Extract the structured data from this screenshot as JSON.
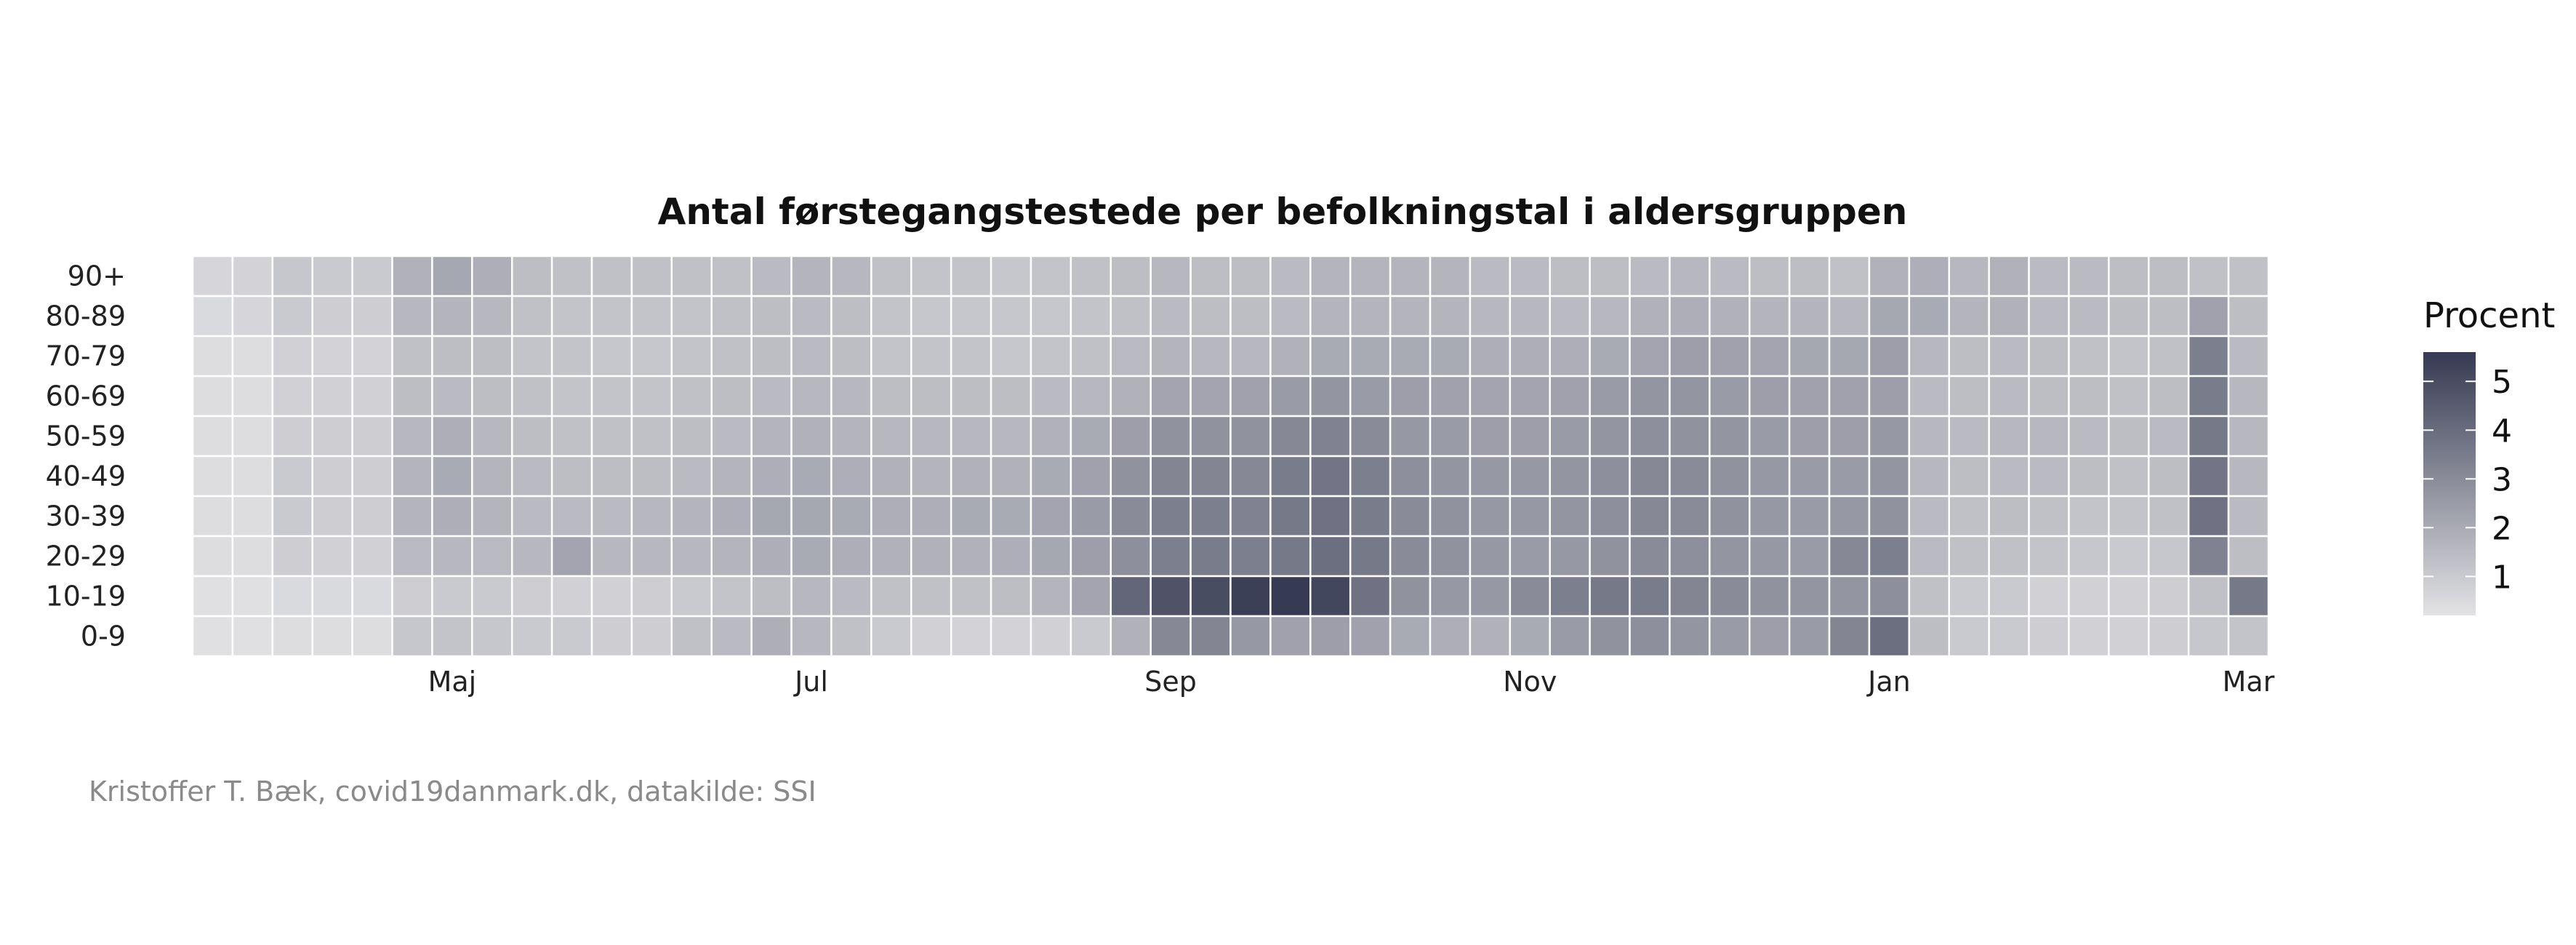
{
  "chart_data": {
    "type": "heatmap",
    "title": "Antal førstegangstestede per befolkningstal i aldersgruppen",
    "caption": "Kristoffer T. Bæk, covid19danmark.dk, datakilde: SSI",
    "rows": [
      "90+",
      "80-89",
      "70-79",
      "60-69",
      "50-59",
      "40-49",
      "30-39",
      "20-29",
      "10-19",
      "0-9"
    ],
    "x_tick_labels": [
      "Maj",
      "Jul",
      "Sep",
      "Nov",
      "Jan",
      "Mar"
    ],
    "x_tick_weeks": [
      6,
      15,
      24,
      33,
      42,
      51
    ],
    "n_weeks": 52,
    "legend": {
      "title": "Procent",
      "ticks": [
        1,
        2,
        3,
        4,
        5
      ],
      "min": 0.2,
      "max": 5.6,
      "low_color": "#e3e3e5",
      "high_color": "#363a52"
    },
    "values": [
      [
        0.6,
        0.7,
        1.1,
        1.0,
        1.0,
        1.8,
        2.1,
        1.9,
        1.4,
        1.3,
        1.3,
        1.3,
        1.3,
        1.3,
        1.5,
        1.7,
        1.6,
        1.3,
        1.2,
        1.2,
        1.1,
        1.2,
        1.3,
        1.4,
        1.6,
        1.4,
        1.4,
        1.5,
        1.7,
        1.7,
        1.7,
        1.7,
        1.5,
        1.5,
        1.4,
        1.4,
        1.5,
        1.6,
        1.5,
        1.4,
        1.4,
        1.3,
        1.8,
        1.9,
        1.6,
        1.8,
        1.5,
        1.5,
        1.4,
        1.4,
        1.3,
        1.3
      ],
      [
        0.5,
        0.6,
        1.0,
        0.9,
        0.9,
        1.6,
        1.7,
        1.6,
        1.3,
        1.2,
        1.2,
        1.2,
        1.2,
        1.3,
        1.4,
        1.5,
        1.4,
        1.2,
        1.1,
        1.1,
        1.1,
        1.1,
        1.2,
        1.3,
        1.5,
        1.4,
        1.4,
        1.5,
        1.7,
        1.7,
        1.7,
        1.7,
        1.6,
        1.6,
        1.5,
        1.6,
        1.8,
        1.9,
        1.8,
        1.7,
        1.7,
        1.6,
        2.1,
        2.0,
        1.7,
        1.8,
        1.5,
        1.5,
        1.4,
        1.4,
        2.3,
        1.4
      ],
      [
        0.4,
        0.4,
        0.8,
        0.7,
        0.7,
        1.3,
        1.4,
        1.4,
        1.2,
        1.2,
        1.1,
        1.1,
        1.2,
        1.3,
        1.4,
        1.5,
        1.4,
        1.2,
        1.2,
        1.2,
        1.1,
        1.2,
        1.3,
        1.5,
        1.7,
        1.6,
        1.6,
        1.8,
        2.0,
        2.0,
        2.0,
        2.0,
        1.9,
        1.9,
        1.9,
        2.0,
        2.2,
        2.4,
        2.3,
        2.2,
        2.1,
        2.1,
        2.4,
        1.6,
        1.4,
        1.5,
        1.4,
        1.3,
        1.2,
        1.3,
        3.4,
        1.5
      ],
      [
        0.4,
        0.4,
        0.8,
        0.8,
        0.8,
        1.4,
        1.5,
        1.4,
        1.3,
        1.2,
        1.2,
        1.2,
        1.3,
        1.4,
        1.5,
        1.6,
        1.6,
        1.4,
        1.4,
        1.4,
        1.4,
        1.5,
        1.6,
        1.8,
        2.2,
        2.2,
        2.3,
        2.5,
        2.7,
        2.5,
        2.4,
        2.3,
        2.2,
        2.2,
        2.3,
        2.5,
        2.7,
        2.7,
        2.5,
        2.4,
        2.3,
        2.3,
        2.4,
        1.5,
        1.4,
        1.5,
        1.4,
        1.4,
        1.3,
        1.4,
        3.5,
        1.6
      ],
      [
        0.4,
        0.4,
        0.9,
        0.9,
        0.9,
        1.6,
        1.9,
        1.6,
        1.4,
        1.3,
        1.3,
        1.3,
        1.4,
        1.5,
        1.7,
        1.8,
        1.7,
        1.6,
        1.6,
        1.6,
        1.6,
        1.8,
        2.0,
        2.4,
        2.8,
        2.8,
        2.8,
        3.1,
        3.3,
        3.0,
        2.6,
        2.5,
        2.4,
        2.4,
        2.5,
        2.7,
        2.9,
        2.8,
        2.7,
        2.5,
        2.4,
        2.4,
        2.6,
        1.6,
        1.5,
        1.6,
        1.6,
        1.5,
        1.4,
        1.5,
        3.6,
        1.6
      ],
      [
        0.4,
        0.4,
        1.0,
        0.9,
        0.9,
        1.7,
        2.0,
        1.7,
        1.5,
        1.4,
        1.4,
        1.4,
        1.5,
        1.7,
        1.9,
        2.0,
        1.9,
        1.8,
        1.7,
        1.8,
        1.8,
        2.0,
        2.3,
        2.8,
        3.2,
        3.2,
        3.1,
        3.5,
        3.7,
        3.4,
        2.9,
        2.7,
        2.6,
        2.6,
        2.7,
        2.9,
        3.1,
        3.0,
        2.8,
        2.6,
        2.5,
        2.5,
        2.7,
        1.6,
        1.4,
        1.5,
        1.5,
        1.4,
        1.3,
        1.4,
        3.7,
        1.6
      ],
      [
        0.4,
        0.4,
        1.0,
        0.9,
        0.9,
        1.7,
        1.9,
        1.7,
        1.5,
        1.5,
        1.5,
        1.6,
        1.7,
        1.9,
        2.1,
        2.1,
        2.0,
        1.9,
        1.9,
        2.0,
        2.0,
        2.2,
        2.5,
        3.0,
        3.4,
        3.4,
        3.3,
        3.6,
        3.8,
        3.5,
        3.0,
        2.8,
        2.6,
        2.6,
        2.7,
        2.9,
        3.1,
        3.0,
        2.8,
        2.6,
        2.5,
        2.6,
        2.8,
        1.5,
        1.3,
        1.4,
        1.3,
        1.2,
        1.2,
        1.3,
        3.8,
        1.5
      ],
      [
        0.4,
        0.4,
        0.9,
        0.8,
        0.8,
        1.5,
        1.6,
        1.5,
        1.6,
        2.2,
        1.6,
        1.6,
        1.6,
        1.7,
        1.9,
        2.0,
        1.9,
        1.8,
        1.8,
        1.8,
        1.9,
        2.1,
        2.4,
        2.9,
        3.4,
        3.5,
        3.4,
        3.6,
        3.9,
        3.6,
        3.0,
        2.8,
        2.6,
        2.5,
        2.6,
        2.8,
        3.0,
        2.9,
        2.7,
        2.6,
        2.5,
        3.1,
        3.4,
        1.5,
        1.3,
        1.3,
        1.2,
        1.1,
        1.0,
        1.1,
        3.3,
        1.4
      ],
      [
        0.3,
        0.3,
        0.5,
        0.5,
        0.5,
        0.9,
        1.0,
        1.0,
        0.9,
        0.8,
        0.8,
        0.9,
        1.0,
        1.2,
        1.4,
        1.6,
        1.5,
        1.3,
        1.3,
        1.3,
        1.4,
        1.7,
        2.2,
        4.2,
        4.8,
        5.0,
        5.4,
        5.6,
        5.2,
        3.8,
        2.8,
        2.6,
        2.6,
        3.0,
        3.4,
        3.6,
        3.5,
        3.2,
        3.0,
        2.8,
        2.7,
        2.7,
        2.9,
        1.3,
        1.0,
        1.0,
        0.8,
        0.8,
        0.8,
        0.9,
        1.3,
        3.6
      ],
      [
        0.3,
        0.3,
        0.4,
        0.4,
        0.4,
        1.1,
        1.2,
        1.1,
        1.0,
        1.0,
        0.9,
        0.9,
        1.3,
        1.5,
        1.9,
        1.6,
        1.3,
        1.0,
        0.8,
        0.7,
        0.7,
        0.8,
        1.0,
        1.8,
        3.1,
        3.2,
        2.6,
        2.3,
        2.4,
        2.3,
        2.0,
        1.9,
        1.8,
        2.0,
        2.5,
        2.8,
        2.9,
        2.7,
        2.5,
        2.4,
        2.5,
        3.2,
        3.9,
        1.4,
        1.0,
        1.0,
        0.9,
        0.8,
        0.8,
        0.9,
        1.1,
        1.2
      ]
    ]
  }
}
